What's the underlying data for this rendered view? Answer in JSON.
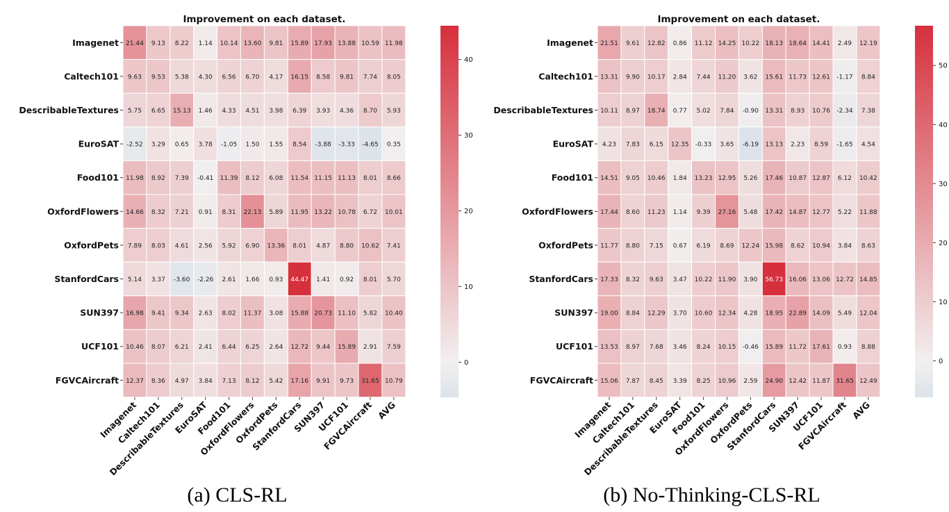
{
  "chart_data": [
    {
      "type": "heatmap",
      "title": "Improvement on each dataset.",
      "caption": "(a) CLS-RL",
      "rows": [
        "Imagenet",
        "Caltech101",
        "DescribableTextures",
        "EuroSAT",
        "Food101",
        "OxfordFlowers",
        "OxfordPets",
        "StanfordCars",
        "SUN397",
        "UCF101",
        "FGVCAircraft"
      ],
      "columns": [
        "Imagenet",
        "Caltech101",
        "DescribableTextures",
        "EuroSAT",
        "Food101",
        "OxfordFlowers",
        "OxfordPets",
        "StanfordCars",
        "SUN397",
        "UCF101",
        "FGVCAircraft",
        "AVG"
      ],
      "values": [
        [
          21.44,
          9.13,
          8.22,
          1.14,
          10.14,
          13.6,
          9.81,
          15.89,
          17.93,
          13.88,
          10.59,
          11.98
        ],
        [
          9.63,
          9.53,
          5.38,
          4.3,
          6.56,
          6.7,
          4.17,
          16.15,
          8.58,
          9.81,
          7.74,
          8.05
        ],
        [
          5.75,
          6.65,
          15.13,
          1.46,
          4.33,
          4.51,
          3.98,
          6.39,
          3.93,
          4.36,
          8.7,
          5.93
        ],
        [
          -2.52,
          3.29,
          0.65,
          3.78,
          -1.05,
          1.5,
          1.55,
          8.54,
          -3.88,
          -3.33,
          -4.65,
          0.35
        ],
        [
          11.98,
          8.92,
          7.39,
          -0.41,
          11.39,
          8.12,
          6.08,
          11.54,
          11.15,
          11.13,
          8.01,
          8.66
        ],
        [
          14.66,
          8.32,
          7.21,
          0.91,
          8.31,
          22.13,
          5.89,
          11.95,
          13.22,
          10.78,
          6.72,
          10.01
        ],
        [
          7.89,
          8.03,
          4.61,
          2.56,
          5.92,
          6.9,
          13.36,
          8.01,
          4.87,
          8.8,
          10.62,
          7.41
        ],
        [
          5.14,
          3.37,
          -3.6,
          -2.26,
          2.61,
          1.66,
          0.93,
          44.47,
          1.41,
          0.92,
          8.01,
          5.7
        ],
        [
          16.98,
          9.41,
          9.34,
          2.63,
          8.02,
          11.37,
          3.08,
          15.88,
          20.73,
          11.1,
          5.82,
          10.4
        ],
        [
          10.46,
          8.07,
          6.21,
          2.41,
          6.44,
          6.25,
          2.64,
          12.72,
          9.44,
          15.89,
          2.91,
          7.59
        ],
        [
          12.37,
          8.36,
          4.97,
          3.84,
          7.13,
          8.12,
          5.42,
          17.16,
          9.91,
          9.73,
          31.65,
          10.79
        ]
      ],
      "colorbar": {
        "min": -4.65,
        "max": 44.47,
        "ticks": [
          0,
          10,
          20,
          30,
          40
        ]
      }
    },
    {
      "type": "heatmap",
      "title": "Improvement on each dataset.",
      "caption": "(b) No-Thinking-CLS-RL",
      "rows": [
        "Imagenet",
        "Caltech101",
        "DescribableTextures",
        "EuroSAT",
        "Food101",
        "OxfordFlowers",
        "OxfordPets",
        "StanfordCars",
        "SUN397",
        "UCF101",
        "FGVCAircraft"
      ],
      "columns": [
        "Imagenet",
        "Caltech101",
        "DescribableTextures",
        "EuroSAT",
        "Food101",
        "OxfordFlowers",
        "OxfordPets",
        "StanfordCars",
        "SUN397",
        "UCF101",
        "FGVCAircraft",
        "AVG"
      ],
      "values": [
        [
          21.51,
          9.61,
          12.82,
          0.86,
          11.12,
          14.25,
          10.22,
          18.13,
          18.64,
          14.41,
          2.49,
          12.19
        ],
        [
          13.31,
          9.9,
          10.17,
          2.84,
          7.44,
          11.2,
          3.62,
          15.61,
          11.73,
          12.61,
          -1.17,
          8.84
        ],
        [
          10.11,
          8.97,
          18.74,
          0.77,
          5.02,
          7.84,
          -0.9,
          13.31,
          8.93,
          10.76,
          -2.34,
          7.38
        ],
        [
          4.23,
          7.83,
          6.15,
          12.35,
          -0.33,
          3.65,
          -6.19,
          13.13,
          2.23,
          8.59,
          -1.65,
          4.54
        ],
        [
          14.51,
          9.05,
          10.46,
          1.84,
          13.23,
          12.95,
          5.26,
          17.46,
          10.87,
          12.87,
          6.12,
          10.42
        ],
        [
          17.44,
          8.6,
          11.23,
          1.14,
          9.39,
          27.16,
          5.48,
          17.42,
          14.87,
          12.77,
          5.22,
          11.88
        ],
        [
          11.77,
          8.8,
          7.15,
          0.67,
          6.19,
          8.69,
          12.24,
          15.98,
          8.62,
          10.94,
          3.84,
          8.63
        ],
        [
          17.33,
          8.32,
          9.63,
          3.47,
          10.22,
          11.9,
          3.9,
          56.73,
          16.06,
          13.06,
          12.72,
          14.85
        ],
        [
          19.0,
          8.84,
          12.29,
          3.7,
          10.6,
          12.34,
          4.28,
          18.95,
          22.89,
          14.09,
          5.49,
          12.04
        ],
        [
          13.53,
          8.97,
          7.68,
          3.46,
          8.24,
          10.15,
          -0.46,
          15.89,
          11.72,
          17.61,
          0.93,
          8.88
        ],
        [
          15.06,
          7.87,
          8.45,
          3.39,
          8.25,
          10.96,
          2.59,
          24.9,
          12.42,
          11.87,
          31.65,
          12.49
        ]
      ],
      "colorbar": {
        "min": -6.19,
        "max": 56.73,
        "ticks": [
          0,
          10,
          20,
          30,
          40,
          50
        ]
      }
    }
  ],
  "colors": {
    "negative": "#dce3ea",
    "zero": "#f2efef",
    "positive": "#d6303d"
  }
}
